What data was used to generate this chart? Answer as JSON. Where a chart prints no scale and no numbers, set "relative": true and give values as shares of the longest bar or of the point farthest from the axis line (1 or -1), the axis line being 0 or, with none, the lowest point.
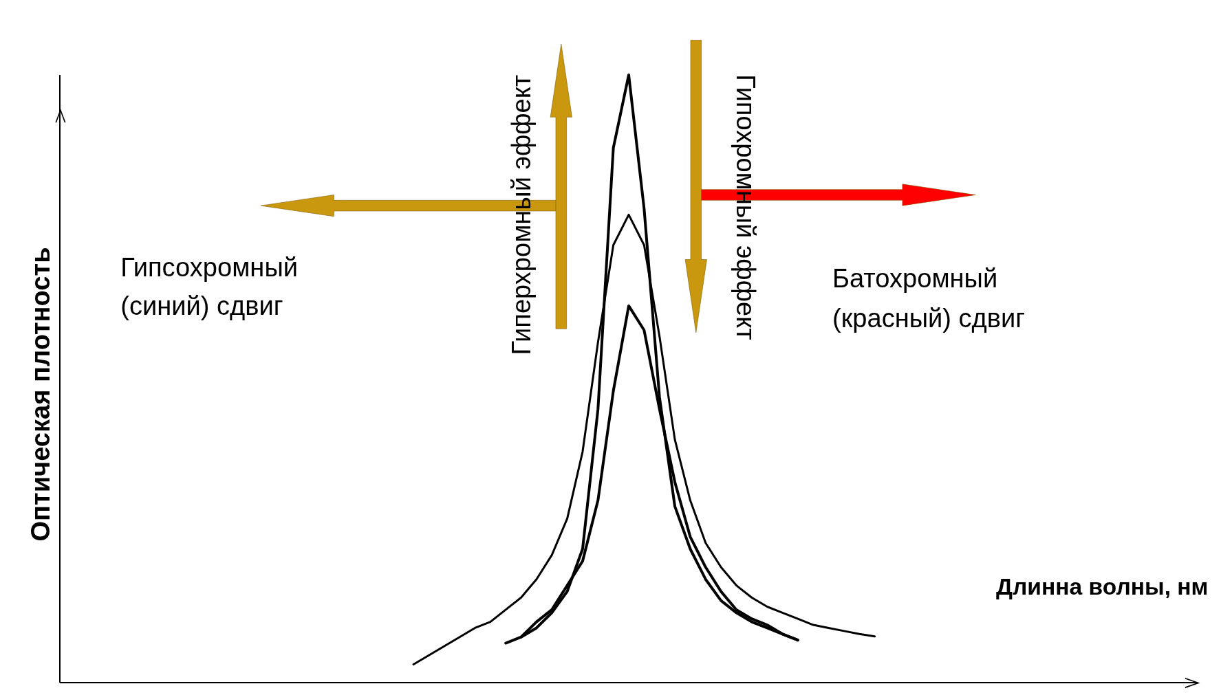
{
  "chart_data": {
    "type": "line",
    "relative": true,
    "xlabel": "Длинна волны, нм",
    "ylabel": "Оптическая плотность",
    "marker": "none",
    "line_style": "solid",
    "annotations": [
      "Гипсохромный (синий) сдвиг",
      "Гиперхромный эффект",
      "Гипохромный эффект",
      "Батохромный (красный) сдвиг"
    ],
    "categories": [
      null,
      null,
      null,
      null,
      null,
      null,
      null,
      null,
      null,
      null,
      null,
      null,
      null,
      null,
      null,
      null,
      null,
      null,
      null,
      null,
      null,
      null,
      null,
      null,
      null,
      null,
      null,
      null,
      null,
      null,
      null,
      null,
      null,
      null,
      null,
      null,
      null,
      null,
      null,
      null,
      null,
      null,
      null,
      null,
      null,
      null,
      null,
      null,
      null,
      null,
      null,
      null,
      null,
      null,
      null,
      null,
      null,
      null,
      null,
      null,
      null,
      null,
      null,
      null,
      null,
      null,
      null,
      null,
      null,
      null,
      null,
      null,
      null,
      null,
      null
    ],
    "series": [
      {
        "color": "#000000",
        "values": [
          null,
          null,
          null,
          null,
          null,
          null,
          null,
          null,
          null,
          null,
          null,
          null,
          null,
          null,
          null,
          null,
          null,
          null,
          null,
          null,
          null,
          null,
          null,
          null,
          null,
          null,
          null,
          null,
          null,
          0.065,
          0.075,
          0.09,
          0.115,
          0.15,
          0.22,
          0.45,
          0.88,
          1.0,
          0.78,
          0.47,
          0.29,
          0.22,
          0.17,
          0.135,
          0.115,
          0.1,
          0.09,
          0.08,
          0.07,
          null,
          null,
          null,
          null,
          null,
          null,
          null,
          null,
          null,
          null,
          null,
          null,
          null,
          null,
          null,
          null,
          null,
          null,
          null,
          null,
          null,
          null,
          null,
          null,
          null,
          null
        ]
      },
      {
        "color": "#000000",
        "values": [
          null,
          null,
          null,
          null,
          null,
          null,
          null,
          null,
          null,
          null,
          null,
          null,
          null,
          null,
          null,
          null,
          null,
          null,
          null,
          null,
          null,
          null,
          null,
          0.03,
          0.045,
          0.06,
          0.075,
          0.09,
          0.1,
          0.12,
          0.14,
          0.17,
          0.21,
          0.27,
          0.38,
          0.56,
          0.72,
          0.77,
          0.72,
          0.57,
          0.4,
          0.3,
          0.23,
          0.19,
          0.16,
          0.14,
          0.125,
          0.115,
          0.105,
          0.095,
          0.09,
          0.085,
          0.08,
          0.076,
          null,
          null,
          null,
          null,
          null,
          null,
          null,
          null,
          null,
          null,
          null,
          null,
          null,
          null,
          null,
          null,
          null,
          null,
          null,
          null,
          null
        ]
      },
      {
        "color": "#000000",
        "values": [
          null,
          null,
          null,
          null,
          null,
          null,
          null,
          null,
          null,
          null,
          null,
          null,
          null,
          null,
          null,
          null,
          null,
          null,
          null,
          null,
          null,
          null,
          null,
          null,
          null,
          null,
          null,
          null,
          null,
          null,
          0.075,
          0.1,
          0.12,
          0.16,
          0.2,
          0.3,
          0.48,
          0.62,
          0.58,
          0.45,
          0.33,
          0.24,
          0.19,
          0.15,
          0.12,
          0.105,
          0.095,
          0.08,
          0.07,
          null,
          null,
          null,
          null,
          null,
          null,
          null,
          null,
          null,
          null,
          null,
          null,
          null,
          null,
          null,
          null,
          null,
          null,
          null,
          null,
          null,
          null,
          null,
          null,
          null,
          null
        ]
      }
    ]
  }
}
